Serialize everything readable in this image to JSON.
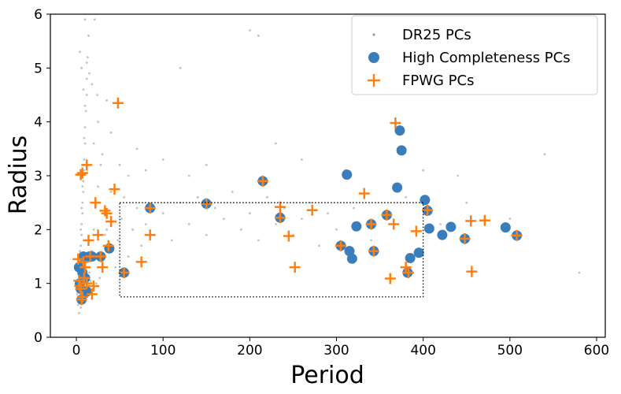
{
  "chart_data": {
    "type": "scatter",
    "xlabel": "Period",
    "ylabel": "Radius",
    "xlim": [
      -30,
      610
    ],
    "ylim": [
      0,
      6
    ],
    "xticks": [
      0,
      100,
      200,
      300,
      400,
      500,
      600
    ],
    "yticks": [
      0,
      1,
      2,
      3,
      4,
      5,
      6
    ],
    "grid": false,
    "legend_position": "top-right",
    "box": {
      "x": [
        50,
        400
      ],
      "y": [
        0.75,
        2.5
      ]
    },
    "colors": {
      "dr25": "#9a9a9a",
      "high": "#3a7dbb",
      "fpwg": "#ff7f0e",
      "box": "#000000"
    },
    "series": [
      {
        "name": "DR25 PCs",
        "marker": "dot",
        "points": [
          [
            2,
            0.6
          ],
          [
            3,
            0.9
          ],
          [
            4,
            1.2
          ],
          [
            5,
            1.5
          ],
          [
            6,
            1.9
          ],
          [
            7,
            2.3
          ],
          [
            8,
            2.7
          ],
          [
            9,
            3.1
          ],
          [
            10,
            3.6
          ],
          [
            11,
            4.2
          ],
          [
            12,
            4.8
          ],
          [
            14,
            5.6
          ],
          [
            3,
            1.1
          ],
          [
            4,
            1.4
          ],
          [
            5,
            1.7
          ],
          [
            6,
            2.1
          ],
          [
            7,
            2.5
          ],
          [
            8,
            2.9
          ],
          [
            9,
            3.3
          ],
          [
            10,
            3.9
          ],
          [
            12,
            4.5
          ],
          [
            13,
            5.2
          ],
          [
            1,
            0.8
          ],
          [
            2,
            1.0
          ],
          [
            3,
            1.3
          ],
          [
            4,
            1.6
          ],
          [
            5,
            2.0
          ],
          [
            6,
            2.4
          ],
          [
            7,
            2.8
          ],
          [
            8,
            3.2
          ],
          [
            9,
            3.7
          ],
          [
            10,
            4.3
          ],
          [
            15,
            1.2
          ],
          [
            18,
            1.6
          ],
          [
            20,
            2.0
          ],
          [
            22,
            2.4
          ],
          [
            25,
            2.8
          ],
          [
            28,
            3.2
          ],
          [
            30,
            1.4
          ],
          [
            33,
            1.9
          ],
          [
            36,
            2.3
          ],
          [
            40,
            2.7
          ],
          [
            45,
            1.3
          ],
          [
            48,
            1.8
          ],
          [
            52,
            2.2
          ],
          [
            55,
            2.6
          ],
          [
            60,
            1.5
          ],
          [
            65,
            2.0
          ],
          [
            70,
            2.4
          ],
          [
            75,
            1.7
          ],
          [
            80,
            2.1
          ],
          [
            90,
            1.9
          ],
          [
            100,
            2.3
          ],
          [
            110,
            1.8
          ],
          [
            120,
            2.5
          ],
          [
            130,
            2.1
          ],
          [
            140,
            2.6
          ],
          [
            150,
            1.9
          ],
          [
            160,
            2.4
          ],
          [
            170,
            2.2
          ],
          [
            180,
            2.7
          ],
          [
            190,
            2.0
          ],
          [
            200,
            2.3
          ],
          [
            210,
            1.8
          ],
          [
            220,
            2.6
          ],
          [
            230,
            2.1
          ],
          [
            240,
            2.4
          ],
          [
            250,
            1.9
          ],
          [
            260,
            2.2
          ],
          [
            270,
            2.5
          ],
          [
            280,
            1.7
          ],
          [
            290,
            2.3
          ],
          [
            300,
            2.0
          ],
          [
            320,
            2.4
          ],
          [
            340,
            1.8
          ],
          [
            360,
            2.2
          ],
          [
            380,
            2.6
          ],
          [
            420,
            2.1
          ],
          [
            450,
            2.5
          ],
          [
            500,
            2.2
          ],
          [
            540,
            3.4
          ],
          [
            580,
            1.2
          ],
          [
            20,
            3.6
          ],
          [
            25,
            4.0
          ],
          [
            30,
            3.4
          ],
          [
            35,
            4.4
          ],
          [
            40,
            3.8
          ],
          [
            50,
            3.2
          ],
          [
            60,
            3.0
          ],
          [
            70,
            3.5
          ],
          [
            80,
            3.1
          ],
          [
            100,
            3.3
          ],
          [
            120,
            5.0
          ],
          [
            130,
            3.0
          ],
          [
            150,
            3.2
          ],
          [
            200,
            5.7
          ],
          [
            210,
            5.6
          ],
          [
            230,
            3.6
          ],
          [
            260,
            3.3
          ],
          [
            310,
            3.1
          ],
          [
            400,
            3.1
          ],
          [
            440,
            3.0
          ],
          [
            3,
            0.45
          ],
          [
            5,
            0.55
          ],
          [
            7,
            0.65
          ],
          [
            9,
            0.75
          ],
          [
            11,
            0.85
          ],
          [
            13,
            0.95
          ],
          [
            16,
            1.05
          ],
          [
            19,
            0.9
          ],
          [
            23,
            1.0
          ],
          [
            27,
            1.1
          ],
          [
            4,
            5.3
          ],
          [
            6,
            5.0
          ],
          [
            8,
            4.6
          ],
          [
            10,
            5.9
          ],
          [
            12,
            5.1
          ],
          [
            15,
            4.9
          ],
          [
            18,
            4.7
          ],
          [
            21,
            5.9
          ],
          [
            24,
            4.5
          ],
          [
            35,
            2.0
          ]
        ]
      },
      {
        "name": "High Completeness PCs",
        "marker": "circle",
        "points": [
          [
            3,
            1.3
          ],
          [
            4,
            1.0
          ],
          [
            5,
            0.9
          ],
          [
            6,
            0.7
          ],
          [
            7,
            1.2
          ],
          [
            8,
            1.5
          ],
          [
            10,
            1.1
          ],
          [
            12,
            0.85
          ],
          [
            15,
            1.5
          ],
          [
            18,
            1.5
          ],
          [
            28,
            1.5
          ],
          [
            38,
            1.65
          ],
          [
            55,
            1.2
          ],
          [
            85,
            2.4
          ],
          [
            150,
            2.48
          ],
          [
            215,
            2.9
          ],
          [
            235,
            2.22
          ],
          [
            305,
            1.7
          ],
          [
            312,
            3.02
          ],
          [
            315,
            1.6
          ],
          [
            318,
            1.46
          ],
          [
            323,
            2.06
          ],
          [
            340,
            2.1
          ],
          [
            343,
            1.6
          ],
          [
            358,
            2.27
          ],
          [
            370,
            2.78
          ],
          [
            373,
            3.84
          ],
          [
            375,
            3.47
          ],
          [
            382,
            1.2
          ],
          [
            385,
            1.47
          ],
          [
            395,
            1.57
          ],
          [
            402,
            2.55
          ],
          [
            405,
            2.35
          ],
          [
            407,
            2.02
          ],
          [
            422,
            1.9
          ],
          [
            432,
            2.05
          ],
          [
            448,
            1.83
          ],
          [
            495,
            2.04
          ],
          [
            508,
            1.89
          ]
        ]
      },
      {
        "name": "FPWG PCs",
        "marker": "plus",
        "points": [
          [
            2,
            1.45
          ],
          [
            3,
            1.05
          ],
          [
            4,
            0.95
          ],
          [
            5,
            0.9
          ],
          [
            6,
            0.7
          ],
          [
            7,
            0.75
          ],
          [
            8,
            1.4
          ],
          [
            9,
            1.1
          ],
          [
            10,
            1.3
          ],
          [
            12,
            1.0
          ],
          [
            14,
            1.8
          ],
          [
            16,
            1.5
          ],
          [
            18,
            0.8
          ],
          [
            20,
            0.95
          ],
          [
            22,
            2.5
          ],
          [
            25,
            1.9
          ],
          [
            28,
            1.5
          ],
          [
            30,
            1.3
          ],
          [
            33,
            2.35
          ],
          [
            35,
            2.3
          ],
          [
            37,
            1.7
          ],
          [
            40,
            2.15
          ],
          [
            44,
            2.75
          ],
          [
            48,
            4.35
          ],
          [
            5,
            3.02
          ],
          [
            7,
            3.05
          ],
          [
            12,
            3.2
          ],
          [
            55,
            1.2
          ],
          [
            75,
            1.4
          ],
          [
            85,
            1.9
          ],
          [
            85,
            2.4
          ],
          [
            150,
            2.48
          ],
          [
            215,
            2.9
          ],
          [
            235,
            2.42
          ],
          [
            235,
            2.22
          ],
          [
            245,
            1.88
          ],
          [
            252,
            1.3
          ],
          [
            272,
            2.36
          ],
          [
            305,
            1.7
          ],
          [
            332,
            2.67
          ],
          [
            340,
            2.1
          ],
          [
            343,
            1.6
          ],
          [
            358,
            2.27
          ],
          [
            362,
            1.09
          ],
          [
            366,
            2.1
          ],
          [
            368,
            3.98
          ],
          [
            380,
            1.3
          ],
          [
            383,
            1.2
          ],
          [
            392,
            1.97
          ],
          [
            405,
            2.36
          ],
          [
            448,
            1.83
          ],
          [
            455,
            2.16
          ],
          [
            456,
            1.22
          ],
          [
            471,
            2.17
          ],
          [
            508,
            1.89
          ]
        ]
      }
    ]
  }
}
